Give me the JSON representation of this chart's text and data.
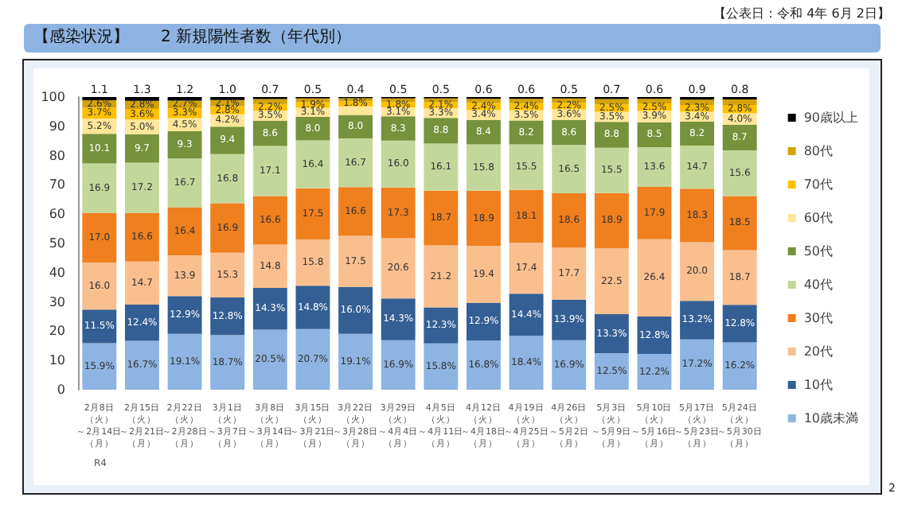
{
  "chart_data": {
    "type": "bar",
    "stacked": true,
    "title": "【感染状況】　　2 新規陽性者数（年代別）",
    "annotations": [
      "【公表日：令和 4年 6月 2日】",
      "R4",
      "2"
    ],
    "categories": [
      "2月8日（火）～2月14日（月）",
      "2月15日（火）～2月21日（月）",
      "2月22日（火）～2月28日（月）",
      "3月1日（火）～3月7日（月）",
      "3月8日（火）～3月14日（月）",
      "3月15日（火）～3月21日（月）",
      "3月22日（火）～3月28日（月）",
      "3月29日（火）～4月4日（月）",
      "4月5日（火）～4月11日（月）",
      "4月12日（火）～4月18日（月）",
      "4月19日（火）～4月25日（月）",
      "4月26日（火）～5月2日（月）",
      "5月3日（火）～5月9日（月）",
      "5月10日（火）～5月16日（月）",
      "5月17日（火）～5月23日（月）",
      "5月24日（火）～5月30日（月）"
    ],
    "ylim": [
      0,
      100
    ],
    "yticks": [
      0,
      10,
      20,
      30,
      40,
      50,
      60,
      70,
      80,
      90,
      100
    ],
    "grid": false,
    "legend": "right",
    "series": [
      {
        "name": "10歳未満",
        "color": "#8db4e2",
        "values": [
          15.9,
          16.7,
          19.1,
          18.7,
          20.5,
          20.7,
          19.1,
          16.9,
          15.8,
          16.8,
          18.4,
          16.9,
          12.5,
          12.2,
          17.2,
          16.2
        ],
        "value_labels": [
          "15.9%",
          "16.7%",
          "19.1%",
          "18.7%",
          "20.5%",
          "20.7%",
          "19.1%",
          "16.9%",
          "15.8%",
          "16.8%",
          "18.4%",
          "16.9%",
          "12.5%",
          "12.2%",
          "17.2%",
          "16.2%"
        ]
      },
      {
        "name": "10代",
        "color": "#335f94",
        "values": [
          11.5,
          12.4,
          12.9,
          12.8,
          14.3,
          14.8,
          16.0,
          14.3,
          12.3,
          12.9,
          14.4,
          13.9,
          13.3,
          12.8,
          13.2,
          12.8
        ],
        "value_labels": [
          "11.5%",
          "12.4%",
          "12.9%",
          "12.8%",
          "14.3%",
          "14.8%",
          "16.0%",
          "14.3%",
          "12.3%",
          "12.9%",
          "14.4%",
          "13.9%",
          "13.3%",
          "12.8%",
          "13.2%",
          "12.8%"
        ]
      },
      {
        "name": "20代",
        "color": "#fabf8f",
        "values": [
          16.0,
          14.7,
          13.9,
          15.3,
          14.8,
          15.8,
          17.5,
          20.6,
          21.2,
          19.4,
          17.4,
          17.7,
          22.5,
          26.4,
          20.0,
          18.7
        ],
        "value_labels": [
          "16.0",
          "14.7",
          "13.9",
          "15.3",
          "14.8",
          "15.8",
          "17.5",
          "20.6",
          "21.2",
          "19.4",
          "17.4",
          "17.7",
          "22.5",
          "26.4",
          "20.0",
          "18.7"
        ]
      },
      {
        "name": "30代",
        "color": "#f07f1e",
        "values": [
          17.0,
          16.6,
          16.4,
          16.9,
          16.6,
          17.5,
          16.6,
          17.3,
          18.7,
          18.9,
          18.1,
          18.6,
          18.9,
          17.9,
          18.3,
          18.5
        ],
        "value_labels": [
          "17.0",
          "16.6",
          "16.4",
          "16.9",
          "16.6",
          "17.5",
          "16.6",
          "17.3",
          "18.7",
          "18.9",
          "18.1",
          "18.6",
          "18.9",
          "17.9",
          "18.3",
          "18.5"
        ]
      },
      {
        "name": "40代",
        "color": "#c4d79b",
        "values": [
          16.9,
          17.2,
          16.7,
          16.8,
          17.1,
          16.4,
          16.7,
          16.0,
          16.1,
          15.8,
          15.5,
          16.5,
          15.5,
          13.6,
          14.7,
          15.6
        ],
        "value_labels": [
          "16.9",
          "17.2",
          "16.7",
          "16.8",
          "17.1",
          "16.4",
          "16.7",
          "16.0",
          "16.1",
          "15.8",
          "15.5",
          "16.5",
          "15.5",
          "13.6",
          "14.7",
          "15.6"
        ]
      },
      {
        "name": "50代",
        "color": "#76923c",
        "values": [
          10.1,
          9.7,
          9.3,
          9.4,
          8.6,
          8.0,
          8.0,
          8.3,
          8.8,
          8.4,
          8.2,
          8.6,
          8.8,
          8.5,
          8.2,
          8.7
        ],
        "value_labels": [
          "10.1",
          "9.7",
          "9.3",
          "9.4",
          "8.6",
          "8.0",
          "8.0",
          "8.3",
          "8.8",
          "8.4",
          "8.2",
          "8.6",
          "8.8",
          "8.5",
          "8.2",
          "8.7"
        ]
      },
      {
        "name": "60代",
        "color": "#ffe699",
        "values": [
          5.2,
          5.0,
          4.5,
          4.2,
          3.5,
          3.1,
          2.9,
          3.1,
          3.3,
          3.4,
          3.5,
          3.6,
          3.5,
          3.9,
          3.4,
          4.0
        ],
        "value_labels": [
          "5.2%",
          "5.0%",
          "4.5%",
          "4.2%",
          "3.5%",
          "3.1%",
          null,
          "3.1%",
          "3.3%",
          "3.4%",
          "3.5%",
          "3.6%",
          "3.5%",
          "3.9%",
          "3.4%",
          "4.0%"
        ]
      },
      {
        "name": "70代",
        "color": "#ffc000",
        "values": [
          3.7,
          3.6,
          3.3,
          2.8,
          2.2,
          1.9,
          1.8,
          1.8,
          2.1,
          2.4,
          2.4,
          2.2,
          2.5,
          2.5,
          2.3,
          2.8
        ],
        "value_labels": [
          "3.7%",
          "3.6%",
          "3.3%",
          "2.8%",
          "2.2%",
          "1.9%",
          "1.8%",
          "1.8%",
          "2.1%",
          "2.4%",
          "2.4%",
          "2.2%",
          "2.5%",
          "2.5%",
          "2.3%",
          "2.8%"
        ]
      },
      {
        "name": "80代",
        "color": "#d4a20a",
        "values": [
          2.6,
          2.8,
          2.7,
          2.1,
          1.7,
          1.3,
          1.0,
          1.2,
          1.2,
          1.4,
          1.5,
          1.5,
          1.8,
          1.6,
          1.8,
          1.9
        ],
        "value_labels": [
          "2.6%",
          "2.8%",
          "2.7%",
          "2.1%",
          null,
          null,
          null,
          null,
          null,
          null,
          null,
          null,
          null,
          null,
          null,
          null
        ]
      },
      {
        "name": "90歳以上",
        "color": "#000000",
        "values": [
          1.1,
          1.3,
          1.2,
          1.0,
          0.7,
          0.5,
          0.4,
          0.5,
          0.5,
          0.6,
          0.6,
          0.5,
          0.7,
          0.6,
          0.9,
          0.8
        ],
        "value_labels": [
          "1.1",
          "1.3",
          "1.2",
          "1.0",
          "0.7",
          "0.5",
          "0.4",
          "0.5",
          "0.5",
          "0.6",
          "0.6",
          "0.5",
          "0.7",
          "0.6",
          "0.9",
          "0.8"
        ]
      }
    ]
  }
}
